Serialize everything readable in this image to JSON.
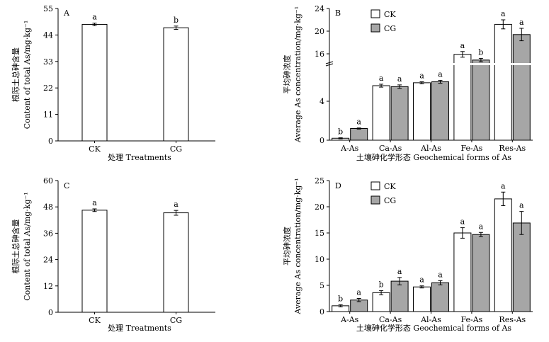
{
  "chart_data": [
    {
      "panel": "A",
      "type": "bar",
      "categories": [
        "CK",
        "CG"
      ],
      "values": [
        48.4,
        47.0
      ],
      "errors": [
        0.5,
        0.7
      ],
      "sig": [
        "a",
        "b"
      ],
      "ylim": [
        0,
        55
      ],
      "yticks": [
        0,
        11,
        22,
        33,
        44,
        55
      ],
      "ylabel_cn": "根际土总砷含量",
      "ylabel_en": "Content of total As/mg·kg⁻¹",
      "xlabel": "处理 Treatments"
    },
    {
      "panel": "B",
      "type": "bar",
      "categories": [
        "A-As",
        "Ca-As",
        "Al-As",
        "Fe-As",
        "Res-As"
      ],
      "series": [
        {
          "name": "CK",
          "color": "#ffffff",
          "values": [
            0.2,
            5.6,
            5.9,
            15.9,
            21.2
          ],
          "errors": [
            0.05,
            0.15,
            0.1,
            0.5,
            0.8
          ],
          "sig": [
            "b",
            "a",
            "a",
            "a",
            "a"
          ]
        },
        {
          "name": "CG",
          "color": "#a6a6a6",
          "values": [
            1.2,
            5.5,
            6.0,
            14.9,
            19.4
          ],
          "errors": [
            0.06,
            0.18,
            0.15,
            0.3,
            1.1
          ],
          "sig": [
            "a",
            "a",
            "a",
            "b",
            "a"
          ]
        }
      ],
      "ylim": [
        0,
        24
      ],
      "axis_break": [
        8,
        14
      ],
      "yticks": [
        0,
        4,
        16,
        20,
        24
      ],
      "ylabel_cn": "平均砷浓度",
      "ylabel_en": "Average As concentration/mg·kg⁻¹",
      "xlabel": "土壤砷化学形态 Geochemical forms of As"
    },
    {
      "panel": "C",
      "type": "bar",
      "categories": [
        "CK",
        "CG"
      ],
      "values": [
        46.5,
        45.3
      ],
      "errors": [
        0.6,
        1.1
      ],
      "sig": [
        "a",
        "a"
      ],
      "ylim": [
        0,
        60
      ],
      "yticks": [
        0,
        12,
        24,
        36,
        48,
        60
      ],
      "ylabel_cn": "根际土总砷含量",
      "ylabel_en": "Content of total As/mg·kg⁻¹",
      "xlabel": "处理 Treatments"
    },
    {
      "panel": "D",
      "type": "bar",
      "categories": [
        "A-As",
        "Ca-As",
        "Al-As",
        "Fe-As",
        "Res-As"
      ],
      "series": [
        {
          "name": "CK",
          "color": "#ffffff",
          "values": [
            1.1,
            3.6,
            4.7,
            15.0,
            21.5
          ],
          "errors": [
            0.2,
            0.4,
            0.2,
            1.0,
            1.3
          ],
          "sig": [
            "b",
            "b",
            "a",
            "a",
            "a"
          ]
        },
        {
          "name": "CG",
          "color": "#a6a6a6",
          "values": [
            2.2,
            5.8,
            5.5,
            14.7,
            16.9
          ],
          "errors": [
            0.3,
            0.7,
            0.4,
            0.4,
            2.2
          ],
          "sig": [
            "a",
            "a",
            "a",
            "a",
            "a"
          ]
        }
      ],
      "ylim": [
        0,
        25
      ],
      "yticks": [
        0,
        5,
        10,
        15,
        20,
        25
      ],
      "ylabel_cn": "平均砷浓度",
      "ylabel_en": "Average As concentration/mg·kg⁻¹",
      "xlabel": "土壤砷化学形态 Geochemical forms of As"
    }
  ]
}
